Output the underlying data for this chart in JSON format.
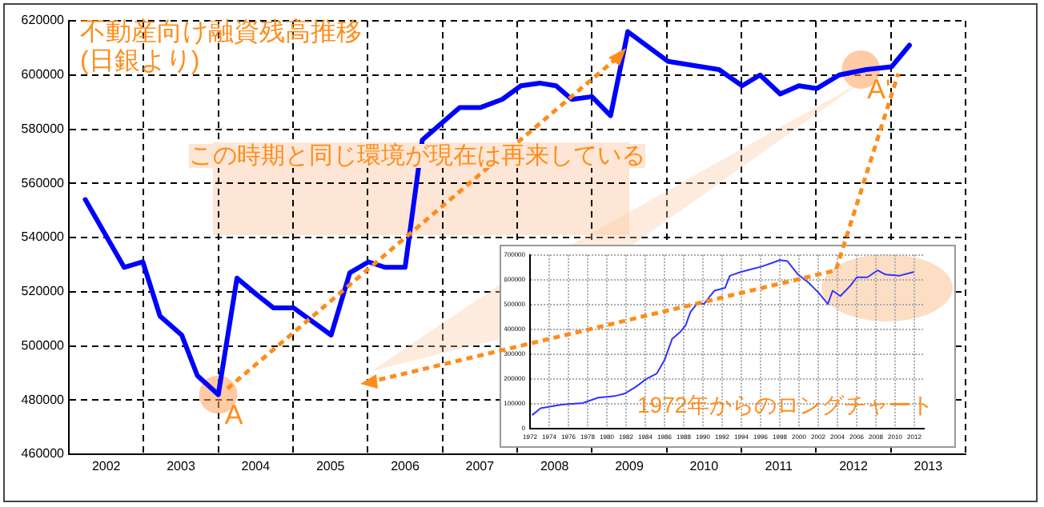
{
  "chart_data": [
    {
      "type": "line",
      "title": "不動産向け融資残高推移",
      "subtitle": "(日銀より)",
      "annotations": [
        "この時期と同じ環境が現在は再来している",
        {
          "text": "A",
          "x": 2004.0,
          "y": 482000
        },
        {
          "text": "A'",
          "x": 2012.6,
          "y": 602000
        }
      ],
      "x": [
        2002.22,
        2002.74,
        2002.99,
        2003.22,
        2003.51,
        2003.72,
        2004.0,
        2004.25,
        2004.51,
        2004.74,
        2005.01,
        2005.51,
        2005.76,
        2006.01,
        2006.23,
        2006.5,
        2006.73,
        2007.23,
        2007.51,
        2007.8,
        2008.05,
        2008.3,
        2008.52,
        2008.73,
        2009.0,
        2009.25,
        2009.48,
        2010.02,
        2010.7,
        2011.01,
        2011.25,
        2011.52,
        2011.77,
        2012.01,
        2012.31,
        2012.67,
        2013.01,
        2013.25
      ],
      "series": [
        {
          "color": "#0000ff",
          "values": [
            554000,
            529000,
            531000,
            511000,
            504000,
            489000,
            482000,
            525000,
            519000,
            514000,
            514000,
            504000,
            527000,
            531000,
            529000,
            529000,
            576000,
            588000,
            588000,
            591000,
            596000,
            597000,
            596000,
            591000,
            592000,
            585000,
            616000,
            605000,
            602000,
            596000,
            600000,
            593000,
            596000,
            595000,
            600000,
            602000,
            603000,
            611000
          ]
        }
      ],
      "xlim": [
        2002,
        2014
      ],
      "xticks": [
        {
          "value": 2002,
          "label": null
        },
        {
          "value": 2002.5,
          "label": "2002"
        },
        {
          "value": 2003,
          "label": null
        },
        {
          "value": 2003.5,
          "label": "2003"
        },
        {
          "value": 2004,
          "label": null
        },
        {
          "value": 2004.5,
          "label": "2004"
        },
        {
          "value": 2005,
          "label": null
        },
        {
          "value": 2005.5,
          "label": "2005"
        },
        {
          "value": 2006,
          "label": null
        },
        {
          "value": 2006.5,
          "label": "2006"
        },
        {
          "value": 2007,
          "label": null
        },
        {
          "value": 2007.5,
          "label": "2007"
        },
        {
          "value": 2008,
          "label": null
        },
        {
          "value": 2008.5,
          "label": "2008"
        },
        {
          "value": 2009,
          "label": null
        },
        {
          "value": 2009.5,
          "label": "2009"
        },
        {
          "value": 2010,
          "label": null
        },
        {
          "value": 2010.5,
          "label": "2010"
        },
        {
          "value": 2011,
          "label": null
        },
        {
          "value": 2011.5,
          "label": "2011"
        },
        {
          "value": 2012,
          "label": null
        },
        {
          "value": 2012.5,
          "label": "2012"
        },
        {
          "value": 2013,
          "label": null
        },
        {
          "value": 2013.5,
          "label": "2013"
        },
        {
          "value": 2014,
          "label": null
        }
      ],
      "ylim": [
        460000,
        620000
      ],
      "yticks": [
        460000,
        480000,
        500000,
        520000,
        540000,
        560000,
        580000,
        600000,
        620000
      ],
      "grid": true
    },
    {
      "type": "line",
      "annotations": [
        "1972年からのロングチャート"
      ],
      "x": [
        1972.27,
        1973.1,
        1975.3,
        1977.5,
        1979.1,
        1980.8,
        1981.9,
        1983.0,
        1984.1,
        1985.2,
        1986.0,
        1986.8,
        1987.6,
        1988.2,
        1988.7,
        1989.5,
        1990.1,
        1991.2,
        1992.3,
        1992.8,
        1993.9,
        1995.0,
        1996.1,
        1997.2,
        1998.0,
        1998.8,
        1999.9,
        2001.0,
        2002.1,
        2003.0,
        2003.5,
        2004.3,
        2005.4,
        2006.0,
        2007.1,
        2008.2,
        2009.0,
        2010.4,
        2011.9
      ],
      "series": [
        {
          "color": "#3333ff",
          "values": [
            56000,
            82000,
            97000,
            103000,
            125000,
            131000,
            142000,
            168000,
            200000,
            222000,
            276000,
            362000,
            388000,
            416000,
            470000,
            509000,
            502000,
            556000,
            567000,
            616000,
            631000,
            642000,
            653000,
            668000,
            679000,
            675000,
            621000,
            588000,
            545000,
            502000,
            556000,
            534000,
            578000,
            610000,
            610000,
            638000,
            621000,
            616000,
            631000
          ]
        }
      ],
      "xlim": [
        1972,
        2013
      ],
      "xticks": [
        1972,
        1974,
        1976,
        1978,
        1980,
        1982,
        1984,
        1986,
        1988,
        1990,
        1992,
        1994,
        1996,
        1998,
        2000,
        2002,
        2004,
        2006,
        2008,
        2010,
        2012
      ],
      "ylim": [
        0,
        700000
      ],
      "yticks": [
        0,
        100000,
        200000,
        300000,
        400000,
        500000,
        600000,
        700000
      ],
      "grid": true
    }
  ]
}
